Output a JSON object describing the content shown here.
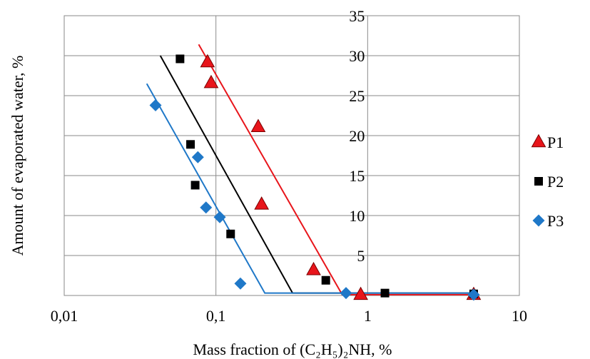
{
  "chart_data": {
    "type": "scatter",
    "xlabel": "Mass fraction of (C₂H₅)₂NH, %",
    "ylabel": "Amount of evaporated water, %",
    "xscale": "log",
    "xlim": [
      0.01,
      10
    ],
    "ylim": [
      0,
      35
    ],
    "x_ticks": [
      0.01,
      0.1,
      1,
      10
    ],
    "x_tick_labels": [
      "0,01",
      "0,1",
      "1",
      "10"
    ],
    "y_ticks": [
      5,
      10,
      15,
      20,
      25,
      30,
      35
    ],
    "y_tick_labels": [
      "5",
      "10",
      "15",
      "20",
      "25",
      "30",
      "35"
    ],
    "grid": true,
    "legend_position": "right",
    "series": [
      {
        "name": "P1",
        "marker": "triangle",
        "color": "#e8151b",
        "points": [
          [
            0.088,
            29.2
          ],
          [
            0.093,
            26.6
          ],
          [
            0.19,
            21.1
          ],
          [
            0.2,
            11.4
          ],
          [
            0.44,
            3.2
          ],
          [
            0.9,
            0.1
          ],
          [
            5.0,
            0.1
          ]
        ],
        "trend": [
          [
            0.077,
            31.4
          ],
          [
            0.68,
            0.1
          ],
          [
            5.0,
            0.1
          ]
        ]
      },
      {
        "name": "P2",
        "marker": "square",
        "color": "#000000",
        "points": [
          [
            0.058,
            29.6
          ],
          [
            0.068,
            18.9
          ],
          [
            0.073,
            13.8
          ],
          [
            0.125,
            7.7
          ],
          [
            0.53,
            1.9
          ],
          [
            1.3,
            0.3
          ],
          [
            5.0,
            0.2
          ]
        ],
        "trend": [
          [
            0.043,
            30.0
          ],
          [
            0.32,
            0.3
          ],
          [
            5.0,
            0.3
          ]
        ]
      },
      {
        "name": "P3",
        "marker": "diamond",
        "color": "#1f78c8",
        "points": [
          [
            0.04,
            23.8
          ],
          [
            0.076,
            17.3
          ],
          [
            0.086,
            11.0
          ],
          [
            0.106,
            9.8
          ],
          [
            0.145,
            1.5
          ],
          [
            0.72,
            0.3
          ],
          [
            5.0,
            0.1
          ]
        ],
        "trend": [
          [
            0.035,
            26.5
          ],
          [
            0.21,
            0.3
          ],
          [
            5.0,
            0.3
          ]
        ]
      }
    ]
  }
}
